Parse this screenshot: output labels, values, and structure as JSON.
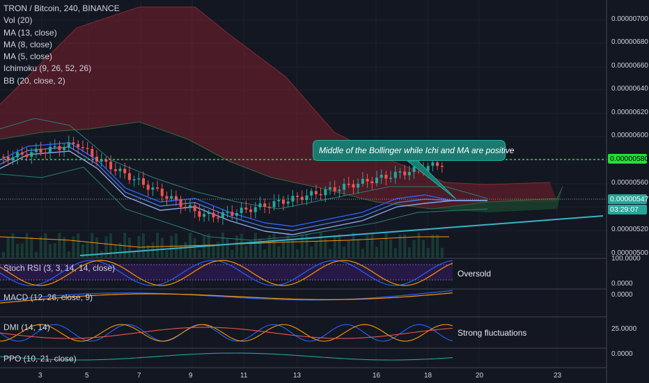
{
  "legend": {
    "title": "TRON / Bitcoin, 240, BINANCE",
    "studies": [
      "Vol (20)",
      "MA (13, close)",
      "MA (8, close)",
      "MA (5, close)",
      "Ichimoku (9, 26, 52, 26)",
      "BB (20, close, 2)"
    ]
  },
  "price_axis": [
    "0.00000700",
    "0.00000680",
    "0.00000660",
    "0.00000640",
    "0.00000620",
    "0.00000600",
    "0.00000560",
    "0.00000520",
    "0.00000500"
  ],
  "price_tags": {
    "resistance": "0.00000580",
    "last": "0.00000547",
    "countdown": "03:29:07"
  },
  "time_axis": [
    "3",
    "5",
    "7",
    "9",
    "11",
    "13",
    "16",
    "18",
    "20",
    "23"
  ],
  "callout": "Middle of the Bollinger while Ichi and MA are positive",
  "panes": {
    "stoch_rsi": {
      "label": "Stoch RSI (3, 3, 14, 14, close)",
      "axis": [
        "100.0000",
        "0.0000"
      ],
      "note": "Oversold"
    },
    "macd": {
      "label": "MACD (12, 26, close, 9)",
      "axis": [
        "0.0000"
      ]
    },
    "dmi": {
      "label": "DMI (14, 14)",
      "axis": [
        "25.0000"
      ],
      "note": "Strong fluctuations"
    },
    "ppo": {
      "label": "PPO (10, 21, close)",
      "axis": [
        "0.0000"
      ]
    }
  },
  "colors": {
    "background": "#131722",
    "up": "#26a69a",
    "down": "#ef5350",
    "cloud_bear": "#7a1f2c",
    "cloud_bull": "#1c4a2e",
    "resistance": "#22e036",
    "trendline": "#38b6c8",
    "ma13": "#2962ff",
    "ma8": "#4f7ad6",
    "ma5": "#8aa8e8",
    "stoch_k": "#2962ff",
    "stoch_d": "#ff9800",
    "stoch_band": "#2a1a4a",
    "macd": "#2962ff",
    "signal": "#ff9800",
    "dmi_plus": "#2962ff",
    "dmi_minus": "#ff9800",
    "adx": "#ef5350",
    "ppo": "#26a69a",
    "volume": "#1a4b3a"
  }
}
